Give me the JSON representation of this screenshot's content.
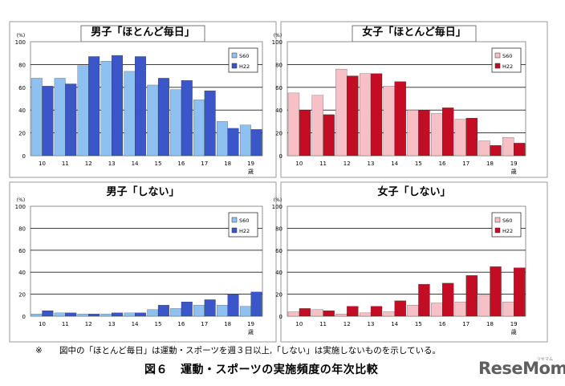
{
  "chart_data": [
    {
      "type": "bar",
      "title": "男子「ほとんど毎日」",
      "ylabel": "(%)",
      "xlabel": "歳",
      "ylim": [
        0,
        100
      ],
      "yticks": [
        0,
        20,
        40,
        60,
        80,
        100
      ],
      "categories": [
        "10",
        "11",
        "12",
        "13",
        "14",
        "15",
        "16",
        "17",
        "18",
        "19"
      ],
      "series": [
        {
          "name": "S60",
          "values": [
            68,
            68,
            79,
            83,
            74,
            62,
            58,
            49,
            30,
            27
          ]
        },
        {
          "name": "H22",
          "values": [
            61,
            63,
            87,
            88,
            87,
            68,
            66,
            57,
            24,
            23
          ]
        }
      ],
      "legend": "top-right",
      "grid": true,
      "colors": {
        "S60": "#8fc1f0",
        "H22": "#3a56c8"
      }
    },
    {
      "type": "bar",
      "title": "女子「ほとんど毎日」",
      "ylabel": "(%)",
      "xlabel": "歳",
      "ylim": [
        0,
        100
      ],
      "yticks": [
        0,
        20,
        40,
        60,
        80,
        100
      ],
      "categories": [
        "10",
        "11",
        "12",
        "13",
        "14",
        "15",
        "16",
        "17",
        "18",
        "19"
      ],
      "series": [
        {
          "name": "S60",
          "values": [
            55,
            53,
            76,
            72,
            61,
            40,
            37,
            32,
            13,
            16
          ]
        },
        {
          "name": "H22",
          "values": [
            40,
            36,
            70,
            72,
            65,
            40,
            42,
            33,
            9,
            11
          ]
        }
      ],
      "legend": "top-right",
      "grid": true,
      "colors": {
        "S60": "#f7c0c6",
        "H22": "#c40c24"
      }
    },
    {
      "type": "bar",
      "title": "男子「しない」",
      "ylabel": "(%)",
      "xlabel": "歳",
      "ylim": [
        0,
        100
      ],
      "yticks": [
        0,
        20,
        40,
        60,
        80,
        100
      ],
      "categories": [
        "10",
        "11",
        "12",
        "13",
        "14",
        "15",
        "16",
        "17",
        "18",
        "19"
      ],
      "series": [
        {
          "name": "S60",
          "values": [
            2,
            3,
            2,
            2,
            3,
            6,
            7,
            10,
            10,
            9
          ]
        },
        {
          "name": "H22",
          "values": [
            5,
            3,
            2,
            3,
            3,
            10,
            13,
            15,
            20,
            22
          ]
        }
      ],
      "legend": "top-right",
      "grid": true,
      "colors": {
        "S60": "#8fc1f0",
        "H22": "#3a56c8"
      }
    },
    {
      "type": "bar",
      "title": "女子「しない」",
      "ylabel": "(%)",
      "xlabel": "歳",
      "ylim": [
        0,
        100
      ],
      "yticks": [
        0,
        20,
        40,
        60,
        80,
        100
      ],
      "categories": [
        "10",
        "11",
        "12",
        "13",
        "14",
        "15",
        "16",
        "17",
        "18",
        "19"
      ],
      "series": [
        {
          "name": "S60",
          "values": [
            4,
            6,
            2,
            3,
            4,
            10,
            12,
            13,
            19,
            13
          ]
        },
        {
          "name": "H22",
          "values": [
            7,
            5,
            9,
            9,
            14,
            29,
            30,
            37,
            45,
            44
          ]
        }
      ],
      "legend": "top-right",
      "grid": true,
      "colors": {
        "S60": "#f7c0c6",
        "H22": "#c40c24"
      }
    }
  ],
  "footnote": {
    "mark": "※",
    "text": "図中の「ほとんど毎日」は運動・スポーツを週３日以上,「しない」は実施しないものを示している。"
  },
  "caption": {
    "number": "図６",
    "text": "運動・スポーツの実施頻度の年次比較"
  },
  "logo": {
    "text": "ReseMom",
    "sub": "リセマム"
  }
}
